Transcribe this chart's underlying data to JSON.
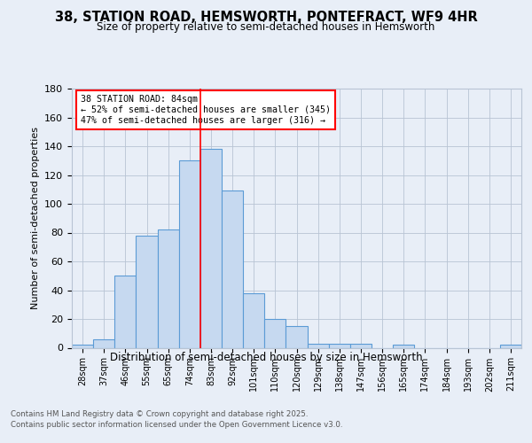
{
  "title1": "38, STATION ROAD, HEMSWORTH, PONTEFRACT, WF9 4HR",
  "title2": "Size of property relative to semi-detached houses in Hemsworth",
  "xlabel": "Distribution of semi-detached houses by size in Hemsworth",
  "ylabel": "Number of semi-detached properties",
  "categories": [
    "28sqm",
    "37sqm",
    "46sqm",
    "55sqm",
    "65sqm",
    "74sqm",
    "83sqm",
    "92sqm",
    "101sqm",
    "110sqm",
    "120sqm",
    "129sqm",
    "138sqm",
    "147sqm",
    "156sqm",
    "165sqm",
    "174sqm",
    "184sqm",
    "193sqm",
    "202sqm",
    "211sqm"
  ],
  "values": [
    2,
    6,
    50,
    78,
    82,
    130,
    138,
    109,
    38,
    20,
    15,
    3,
    3,
    3,
    0,
    2,
    0,
    0,
    0,
    0,
    2
  ],
  "bar_color": "#c6d9f0",
  "bar_edge_color": "#5b9bd5",
  "marker_index": 6,
  "annotation_title": "38 STATION ROAD: 84sqm",
  "annotation_line1": "← 52% of semi-detached houses are smaller (345)",
  "annotation_line2": "47% of semi-detached houses are larger (316) →",
  "ylim": [
    0,
    180
  ],
  "yticks": [
    0,
    20,
    40,
    60,
    80,
    100,
    120,
    140,
    160,
    180
  ],
  "footer1": "Contains HM Land Registry data © Crown copyright and database right 2025.",
  "footer2": "Contains public sector information licensed under the Open Government Licence v3.0.",
  "bg_color": "#e8eef7"
}
